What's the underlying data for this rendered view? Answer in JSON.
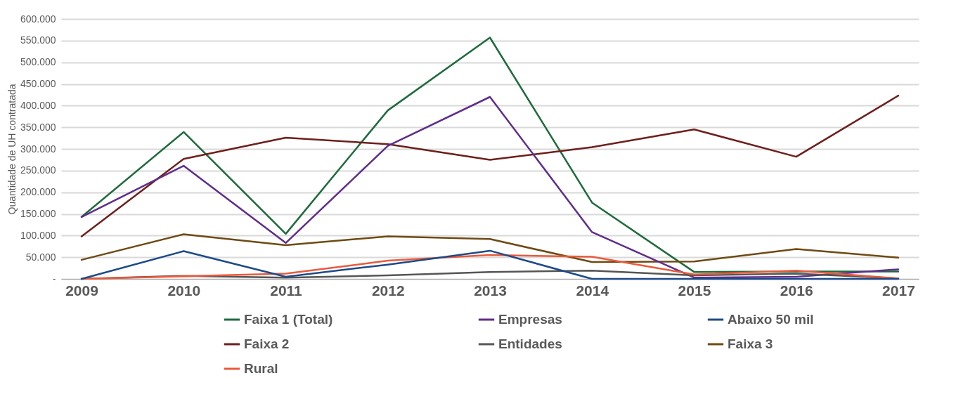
{
  "chart_data": {
    "type": "line",
    "ylabel": "Quantidade de UH contratada",
    "categories": [
      "2009",
      "2010",
      "2011",
      "2012",
      "2013",
      "2014",
      "2015",
      "2016",
      "2017"
    ],
    "series": [
      {
        "name": "Faixa 1 (Total)",
        "color": "#1e6b3c",
        "values": [
          143000,
          339000,
          104000,
          389000,
          557000,
          176000,
          16000,
          17000,
          17000
        ]
      },
      {
        "name": "Faixa 2",
        "color": "#6e1f1c",
        "values": [
          98000,
          277000,
          326000,
          311000,
          275000,
          304000,
          345000,
          282000,
          423000
        ]
      },
      {
        "name": "Faixa 3",
        "color": "#6e4a12",
        "values": [
          44000,
          103000,
          78000,
          98000,
          92000,
          39000,
          40000,
          69000,
          49000
        ]
      },
      {
        "name": "Empresas",
        "color": "#5f2d8c",
        "values": [
          143000,
          261000,
          83000,
          307000,
          420000,
          108000,
          3000,
          5000,
          22000
        ]
      },
      {
        "name": "Entidades",
        "color": "#555555",
        "values": [
          0,
          7000,
          3000,
          8000,
          16000,
          19000,
          8000,
          12000,
          1000
        ]
      },
      {
        "name": "Rural",
        "color": "#ea5a3a",
        "values": [
          0,
          6000,
          12000,
          42000,
          55000,
          51000,
          10000,
          19000,
          1000
        ]
      },
      {
        "name": "Abaixo 50 mil",
        "color": "#1d4a8a",
        "values": [
          0,
          64000,
          5000,
          33000,
          65000,
          0,
          0,
          0,
          0
        ]
      }
    ],
    "ylim": [
      0,
      600000
    ],
    "yticks": [
      {
        "value": 0,
        "label": "-"
      },
      {
        "value": 50000,
        "label": "50.000"
      },
      {
        "value": 100000,
        "label": "100.000"
      },
      {
        "value": 150000,
        "label": "150.000"
      },
      {
        "value": 200000,
        "label": "200.000"
      },
      {
        "value": 250000,
        "label": "250.000"
      },
      {
        "value": 300000,
        "label": "300.000"
      },
      {
        "value": 350000,
        "label": "350.000"
      },
      {
        "value": 400000,
        "label": "400.000"
      },
      {
        "value": 450000,
        "label": "450.000"
      },
      {
        "value": 500000,
        "label": "500.000"
      },
      {
        "value": 550000,
        "label": "550.000"
      },
      {
        "value": 600000,
        "label": "600.000"
      }
    ],
    "grid": "y",
    "legend": "bottom",
    "line_style": "solid",
    "marker": "none"
  }
}
